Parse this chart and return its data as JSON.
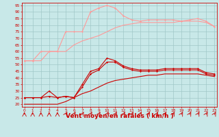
{
  "bg_color": "#C8E8E8",
  "grid_color": "#A0C8C8",
  "red_color": "#CC0000",
  "pink_color": "#FF9999",
  "xlabel": "Vent moyen/en rafales ( km/h )",
  "xlabel_fontsize": 6.5,
  "tick_fontsize": 4.2,
  "xlim": [
    -0.3,
    23.3
  ],
  "ylim": [
    18,
    97
  ],
  "xticks": [
    0,
    1,
    2,
    3,
    4,
    5,
    6,
    7,
    8,
    9,
    10,
    11,
    12,
    13,
    14,
    15,
    16,
    17,
    18,
    19,
    20,
    21,
    22,
    23
  ],
  "yticks": [
    20,
    25,
    30,
    35,
    40,
    45,
    50,
    55,
    60,
    65,
    70,
    75,
    80,
    85,
    90,
    95
  ],
  "x": [
    0,
    1,
    2,
    3,
    4,
    5,
    6,
    7,
    8,
    9,
    10,
    11,
    12,
    13,
    14,
    15,
    16,
    17,
    18,
    19,
    20,
    21,
    22,
    23
  ],
  "pink_line1_y": [
    53,
    53,
    53,
    60,
    60,
    60,
    65,
    68,
    70,
    72,
    75,
    78,
    80,
    81,
    82,
    82,
    82,
    82,
    82,
    83,
    83,
    83,
    82,
    79
  ],
  "pink_line2_y": [
    53,
    53,
    60,
    60,
    60,
    75,
    75,
    75,
    90,
    93,
    95,
    93,
    87,
    84,
    83,
    84,
    84,
    84,
    84,
    83,
    84,
    85,
    83,
    79
  ],
  "red_line1_y": [
    20,
    20,
    20,
    20,
    20,
    22,
    25,
    28,
    30,
    33,
    36,
    38,
    39,
    40,
    41,
    42,
    42,
    43,
    43,
    43,
    43,
    43,
    42,
    41
  ],
  "red_line2_y": [
    25,
    25,
    25,
    30,
    25,
    26,
    25,
    33,
    43,
    46,
    52,
    52,
    48,
    46,
    45,
    45,
    45,
    46,
    46,
    46,
    46,
    46,
    43,
    42
  ],
  "red_line3_y": [
    25,
    25,
    25,
    26,
    25,
    26,
    25,
    35,
    45,
    47,
    55,
    53,
    49,
    47,
    46,
    46,
    46,
    47,
    47,
    47,
    47,
    47,
    44,
    43
  ],
  "wind_arrows_up": [
    0,
    1,
    2,
    3,
    4
  ],
  "wind_arrows_diag": [
    5,
    6,
    7,
    8,
    9,
    10,
    11,
    12,
    13,
    14,
    15,
    16,
    17,
    18,
    19,
    20,
    21,
    22,
    23
  ]
}
